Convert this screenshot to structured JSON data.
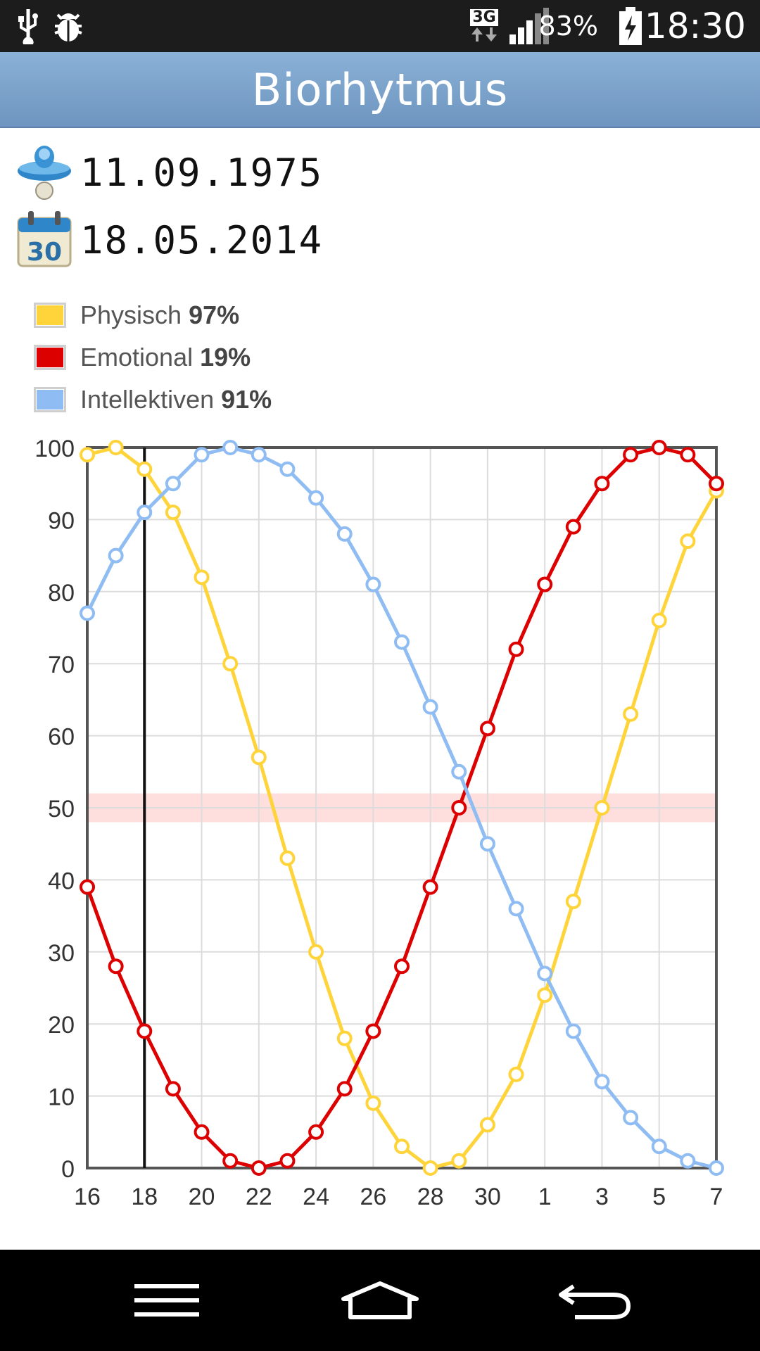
{
  "status_bar": {
    "network_type": "3G",
    "battery_percent": "83%",
    "time": "18:30",
    "icons": [
      "usb-icon",
      "debug-icon",
      "data-arrows-icon",
      "signal-icon",
      "battery-charging-icon"
    ]
  },
  "app": {
    "title": "Biorhytmus"
  },
  "dates": {
    "birth_date": "11.09.1975",
    "current_date": "18.05.2014",
    "birth_icon": "pacifier-icon",
    "current_icon": "calendar-icon",
    "calendar_icon_text": "30"
  },
  "legend": [
    {
      "name": "Physisch",
      "value": "97%",
      "color": "#ffd43b"
    },
    {
      "name": "Emotional",
      "value": "19%",
      "color": "#dd0000"
    },
    {
      "name": "Intellektiven",
      "value": "91%",
      "color": "#8fbdf3"
    }
  ],
  "chart_data": {
    "type": "line",
    "xlabel": "",
    "ylabel": "",
    "ylim": [
      0,
      100
    ],
    "y_ticks": [
      0,
      10,
      20,
      30,
      40,
      50,
      60,
      70,
      80,
      90,
      100
    ],
    "x_tick_labels": [
      "16",
      "18",
      "20",
      "22",
      "24",
      "26",
      "28",
      "30",
      "1",
      "3",
      "5",
      "7"
    ],
    "x_days": [
      "16",
      "17",
      "18",
      "19",
      "20",
      "21",
      "22",
      "23",
      "24",
      "25",
      "26",
      "27",
      "28",
      "29",
      "30",
      "31",
      "1",
      "2",
      "3",
      "4",
      "5",
      "6",
      "7"
    ],
    "current_day": "18",
    "reference_band": {
      "y": 50,
      "color": "#ffdede"
    },
    "grid": true,
    "series": [
      {
        "name": "Physisch",
        "color": "#ffd43b",
        "values": [
          99,
          100,
          97,
          91,
          82,
          70,
          57,
          43,
          30,
          18,
          9,
          3,
          0,
          1,
          6,
          13,
          24,
          37,
          50,
          63,
          76,
          87,
          94
        ]
      },
      {
        "name": "Emotional",
        "color": "#dd0000",
        "values": [
          39,
          28,
          19,
          11,
          5,
          1,
          0,
          1,
          5,
          11,
          19,
          28,
          39,
          50,
          61,
          72,
          81,
          89,
          95,
          99,
          100,
          99,
          95
        ]
      },
      {
        "name": "Intellektiven",
        "color": "#8fbdf3",
        "values": [
          77,
          85,
          91,
          95,
          99,
          100,
          99,
          97,
          93,
          88,
          81,
          73,
          64,
          55,
          45,
          36,
          27,
          19,
          12,
          7,
          3,
          1,
          0
        ]
      }
    ]
  },
  "nav_bar": {
    "icons": [
      "menu-icon",
      "home-icon",
      "back-icon"
    ]
  }
}
